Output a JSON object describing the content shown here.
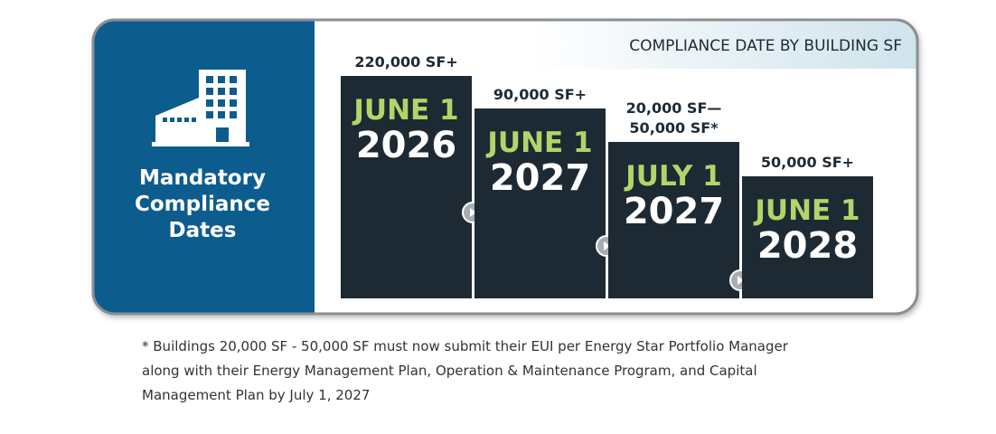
{
  "sidebar": {
    "title_lines": [
      "Mandatory",
      "Compliance",
      "Dates"
    ]
  },
  "header": {
    "title": "COMPLIANCE DATE BY BUILDING SF"
  },
  "steps": [
    {
      "size_lines": [
        "220,000 SF+"
      ],
      "date": "JUNE 1",
      "year": "2026"
    },
    {
      "size_lines": [
        "90,000 SF+"
      ],
      "date": "JUNE 1",
      "year": "2027"
    },
    {
      "size_lines": [
        "20,000 SF—",
        "50,000 SF*"
      ],
      "date": "JULY 1",
      "year": "2027"
    },
    {
      "size_lines": [
        "50,000 SF+"
      ],
      "date": "JUNE 1",
      "year": "2028"
    }
  ],
  "footnote": {
    "lines": [
      "* Buildings 20,000 SF - 50,000 SF must now submit their EUI per Energy Star Portfolio Manager",
      "along with their Energy Management Plan, Operation & Maintenance Program, and Capital",
      "Management Plan by July 1, 2027"
    ]
  }
}
